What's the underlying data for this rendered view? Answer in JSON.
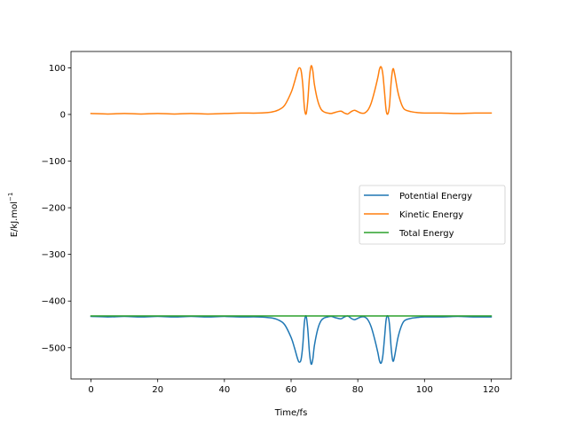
{
  "chart_data": {
    "type": "line",
    "title": "",
    "xlabel": "Time/fs",
    "ylabel": "E/kJ.mol",
    "ylabel_superscript": "−1",
    "xlim": [
      -6,
      126
    ],
    "ylim": [
      -567,
      135
    ],
    "xticks": [
      0,
      20,
      40,
      60,
      80,
      100,
      120
    ],
    "xtick_labels": [
      "0",
      "20",
      "40",
      "60",
      "80",
      "100",
      "120"
    ],
    "yticks": [
      100,
      0,
      -100,
      -200,
      -300,
      -400,
      -500
    ],
    "ytick_labels": [
      "100",
      "0",
      "−100",
      "−200",
      "−300",
      "−400",
      "−500"
    ],
    "grid": false,
    "legend_position": "center-right",
    "series": [
      {
        "name": "Potential Energy",
        "color": "#1f77b4",
        "x": [
          0,
          5,
          10,
          15,
          20,
          25,
          30,
          35,
          40,
          45,
          50,
          54,
          56,
          58,
          60,
          61,
          62,
          62.5,
          63,
          63.5,
          64,
          64.5,
          65,
          65.5,
          66,
          66.5,
          67,
          68,
          69,
          70,
          71,
          72,
          73,
          74,
          75,
          76,
          77,
          78,
          79,
          80,
          81,
          82,
          83,
          84,
          85,
          86,
          86.5,
          87,
          87.5,
          88,
          88.5,
          89,
          89.5,
          90,
          90.5,
          91,
          92,
          93,
          94,
          96,
          98,
          100,
          105,
          110,
          115,
          120
        ],
        "values": [
          -433,
          -434,
          -433,
          -434,
          -433,
          -434,
          -433,
          -434,
          -433,
          -434,
          -434,
          -436,
          -440,
          -450,
          -478,
          -500,
          -525,
          -531,
          -525,
          -495,
          -445,
          -432,
          -460,
          -510,
          -535,
          -525,
          -495,
          -460,
          -442,
          -436,
          -434,
          -433,
          -435,
          -437,
          -438,
          -434,
          -432,
          -437,
          -440,
          -437,
          -434,
          -434,
          -440,
          -455,
          -480,
          -510,
          -528,
          -533,
          -518,
          -480,
          -440,
          -432,
          -450,
          -500,
          -528,
          -520,
          -480,
          -455,
          -442,
          -437,
          -435,
          -434,
          -434,
          -433,
          -434,
          -434
        ]
      },
      {
        "name": "Kinetic Energy",
        "color": "#ff7f0e",
        "x": [
          0,
          5,
          10,
          15,
          20,
          25,
          30,
          35,
          40,
          45,
          50,
          54,
          56,
          58,
          60,
          61,
          62,
          62.5,
          63,
          63.5,
          64,
          64.5,
          65,
          65.5,
          66,
          66.5,
          67,
          68,
          69,
          70,
          71,
          72,
          73,
          74,
          75,
          76,
          77,
          78,
          79,
          80,
          81,
          82,
          83,
          84,
          85,
          86,
          86.5,
          87,
          87.5,
          88,
          88.5,
          89,
          89.5,
          90,
          90.5,
          91,
          92,
          93,
          94,
          96,
          98,
          100,
          105,
          110,
          115,
          120
        ],
        "values": [
          2,
          1,
          2,
          1,
          2,
          1,
          2,
          1,
          2,
          3,
          3,
          5,
          9,
          19,
          47,
          69,
          94,
          100,
          94,
          64,
          14,
          1,
          29,
          79,
          104,
          94,
          64,
          29,
          11,
          5,
          3,
          2,
          4,
          6,
          7,
          3,
          1,
          6,
          9,
          6,
          3,
          3,
          9,
          24,
          49,
          79,
          97,
          102,
          87,
          49,
          9,
          1,
          19,
          69,
          97,
          89,
          49,
          24,
          11,
          6,
          4,
          3,
          3,
          2,
          3,
          3
        ]
      },
      {
        "name": "Total Energy",
        "color": "#2ca02c",
        "x": [
          0,
          120
        ],
        "values": [
          -432,
          -432
        ]
      }
    ]
  }
}
